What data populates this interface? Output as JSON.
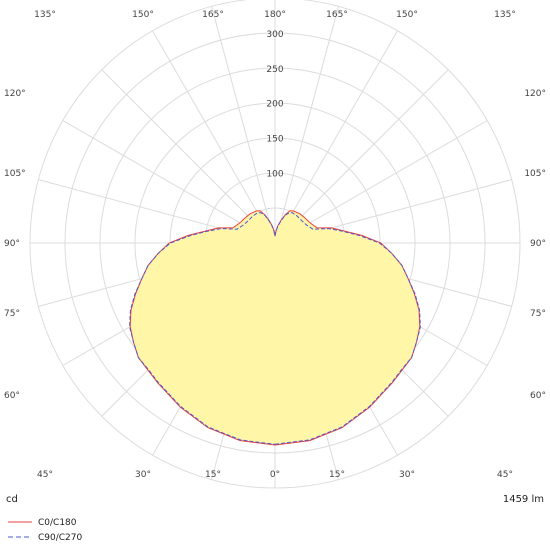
{
  "chart_data": {
    "type": "polar",
    "unit_label": "cd",
    "flux_label": "1459 lm",
    "radial_ticks": [
      50,
      100,
      150,
      200,
      250,
      300
    ],
    "radial_tick_labels": [
      "100",
      "150",
      "200",
      "250",
      "300"
    ],
    "radial_max": 300,
    "angle_labels": {
      "bottom": [
        "45°",
        "30°",
        "15°",
        "0°",
        "15°",
        "30°",
        "45°"
      ],
      "top": [
        "135°",
        "150°",
        "165°",
        "180°",
        "165°",
        "150°",
        "135°"
      ],
      "left": [
        "120°",
        "105°",
        "90°",
        "75°",
        "60°"
      ],
      "right": [
        "120°",
        "105°",
        "90°",
        "75°",
        "60°"
      ]
    },
    "fill_color": "#fff6a8",
    "series": [
      {
        "name": "C0/C180",
        "color": "#e8413c",
        "dash": "solid",
        "angles": [
          0,
          10,
          20,
          30,
          40,
          45,
          50,
          55,
          60,
          65,
          70,
          75,
          80,
          85,
          90,
          95,
          100,
          105,
          110,
          120,
          130,
          140,
          150,
          155,
          160,
          165,
          170,
          175,
          180
        ],
        "values": [
          290,
          288,
          282,
          272,
          262,
          258,
          256,
          248,
          240,
          228,
          213,
          198,
          185,
          168,
          152,
          125,
          100,
          84,
          64,
          58,
          56,
          55,
          53,
          51,
          43,
          34,
          26,
          18,
          10
        ]
      },
      {
        "name": "C90/C270",
        "color": "#4b58d6",
        "dash": "dashed",
        "angles": [
          0,
          10,
          20,
          30,
          40,
          45,
          50,
          55,
          60,
          65,
          70,
          75,
          80,
          85,
          90,
          95,
          100,
          105,
          110,
          120,
          130,
          140,
          150,
          155,
          160,
          165,
          170,
          175,
          180
        ],
        "values": [
          289,
          287,
          281,
          271,
          261,
          257,
          256,
          248,
          241,
          229,
          214,
          198,
          185,
          168,
          150,
          122,
          98,
          80,
          58,
          52,
          50,
          50,
          50,
          48,
          42,
          33,
          25,
          17,
          10
        ]
      }
    ]
  }
}
